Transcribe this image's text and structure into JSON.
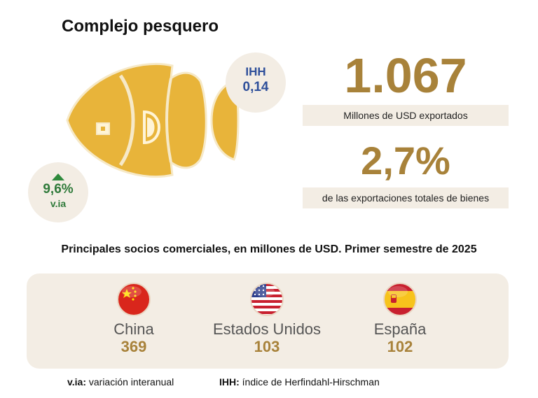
{
  "title": "Complejo pesquero",
  "ihh": {
    "label": "IHH",
    "value": "0,14"
  },
  "via": {
    "value": "9,6%",
    "unit": "v.ia",
    "direction": "up"
  },
  "exports": {
    "amount": "1.067",
    "amount_caption": "Millones de USD exportados",
    "share": "2,7%",
    "share_caption": "de las exportaciones totales de bienes"
  },
  "partners_title": "Principales socios comerciales, en millones de USD. Primer semestre de 2025",
  "partners": [
    {
      "country": "China",
      "value": "369",
      "flag_icon": "china-flag-icon"
    },
    {
      "country": "Estados Unidos",
      "value": "103",
      "flag_icon": "usa-flag-icon"
    },
    {
      "country": "España",
      "value": "102",
      "flag_icon": "spain-flag-icon"
    }
  ],
  "legend": [
    {
      "term": "v.ia:",
      "definition": "variación interanual"
    },
    {
      "term": "IHH:",
      "definition": "índice de Herfindahl-Hirschman"
    }
  ],
  "colors": {
    "gold": "#a8823a",
    "fish": "#e8b43a",
    "beige": "#f3ede4",
    "ihh_blue": "#2e4f9a",
    "via_green": "#2f7a3a"
  }
}
